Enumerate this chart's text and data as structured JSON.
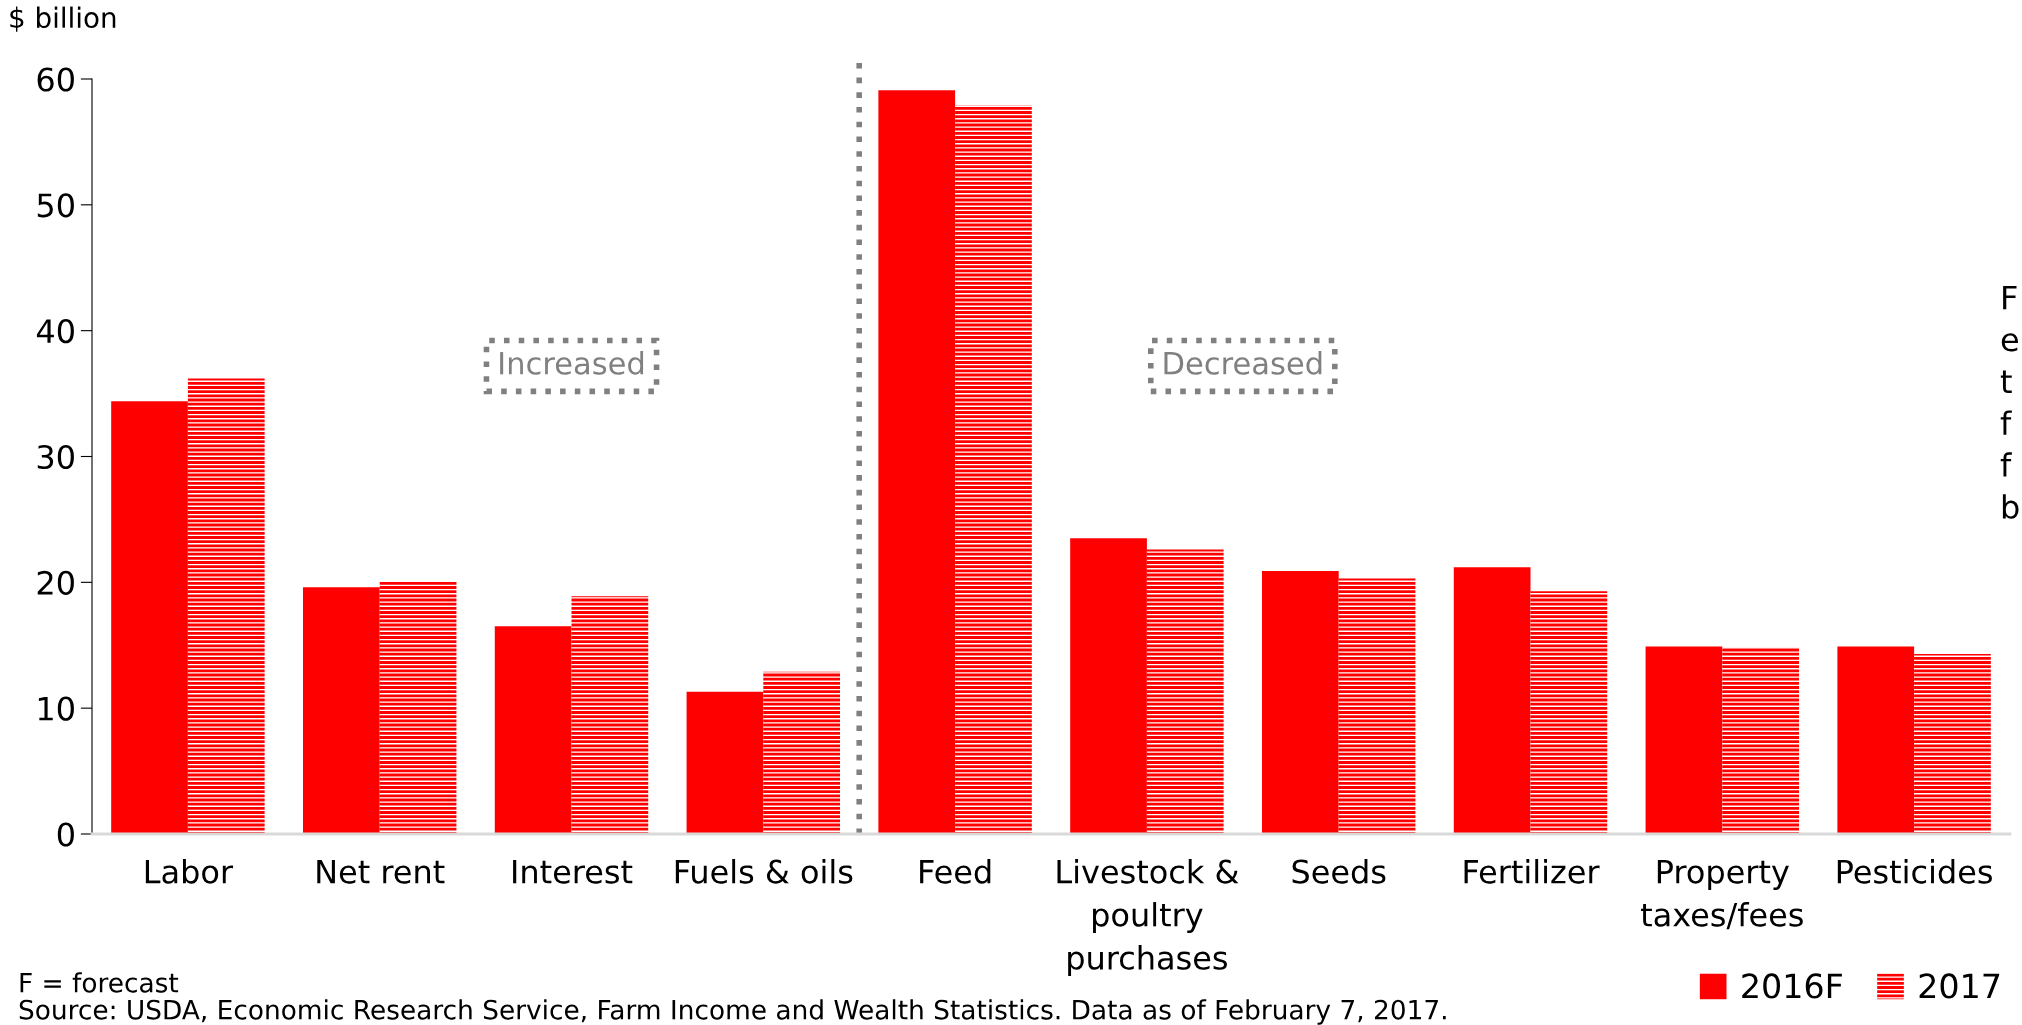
{
  "chart_data": {
    "type": "bar",
    "ylabel": "$ billion",
    "categories": [
      "Labor",
      "Net rent",
      "Interest",
      "Fuels & oils",
      "Feed",
      "Livestock &\npoultry\npurchases",
      "Seeds",
      "Fertilizer",
      "Property\ntaxes/fees",
      "Pesticides"
    ],
    "series": [
      {
        "name": "2016F",
        "color": "#ff0000",
        "values": [
          34.4,
          19.6,
          16.5,
          11.3,
          59.1,
          23.5,
          20.9,
          21.2,
          14.9,
          14.9
        ]
      },
      {
        "name": "2017",
        "color": "#ff0000",
        "values": [
          36.2,
          20.1,
          18.9,
          12.9,
          57.9,
          22.6,
          20.3,
          19.3,
          14.8,
          14.3
        ]
      }
    ],
    "ylim": [
      0,
      60
    ],
    "yticks": [
      0,
      10,
      20,
      30,
      40,
      50,
      60
    ],
    "grid": false,
    "legend": "bottom right",
    "annotations": [
      "Increased",
      "Decreased",
      "F = forecast",
      "Source: USDA, Economic Research Service, Farm Income and Wealth Statistics. Data as of February 7, 2017.",
      "F\ne\nt\nf\nf\nb"
    ]
  }
}
